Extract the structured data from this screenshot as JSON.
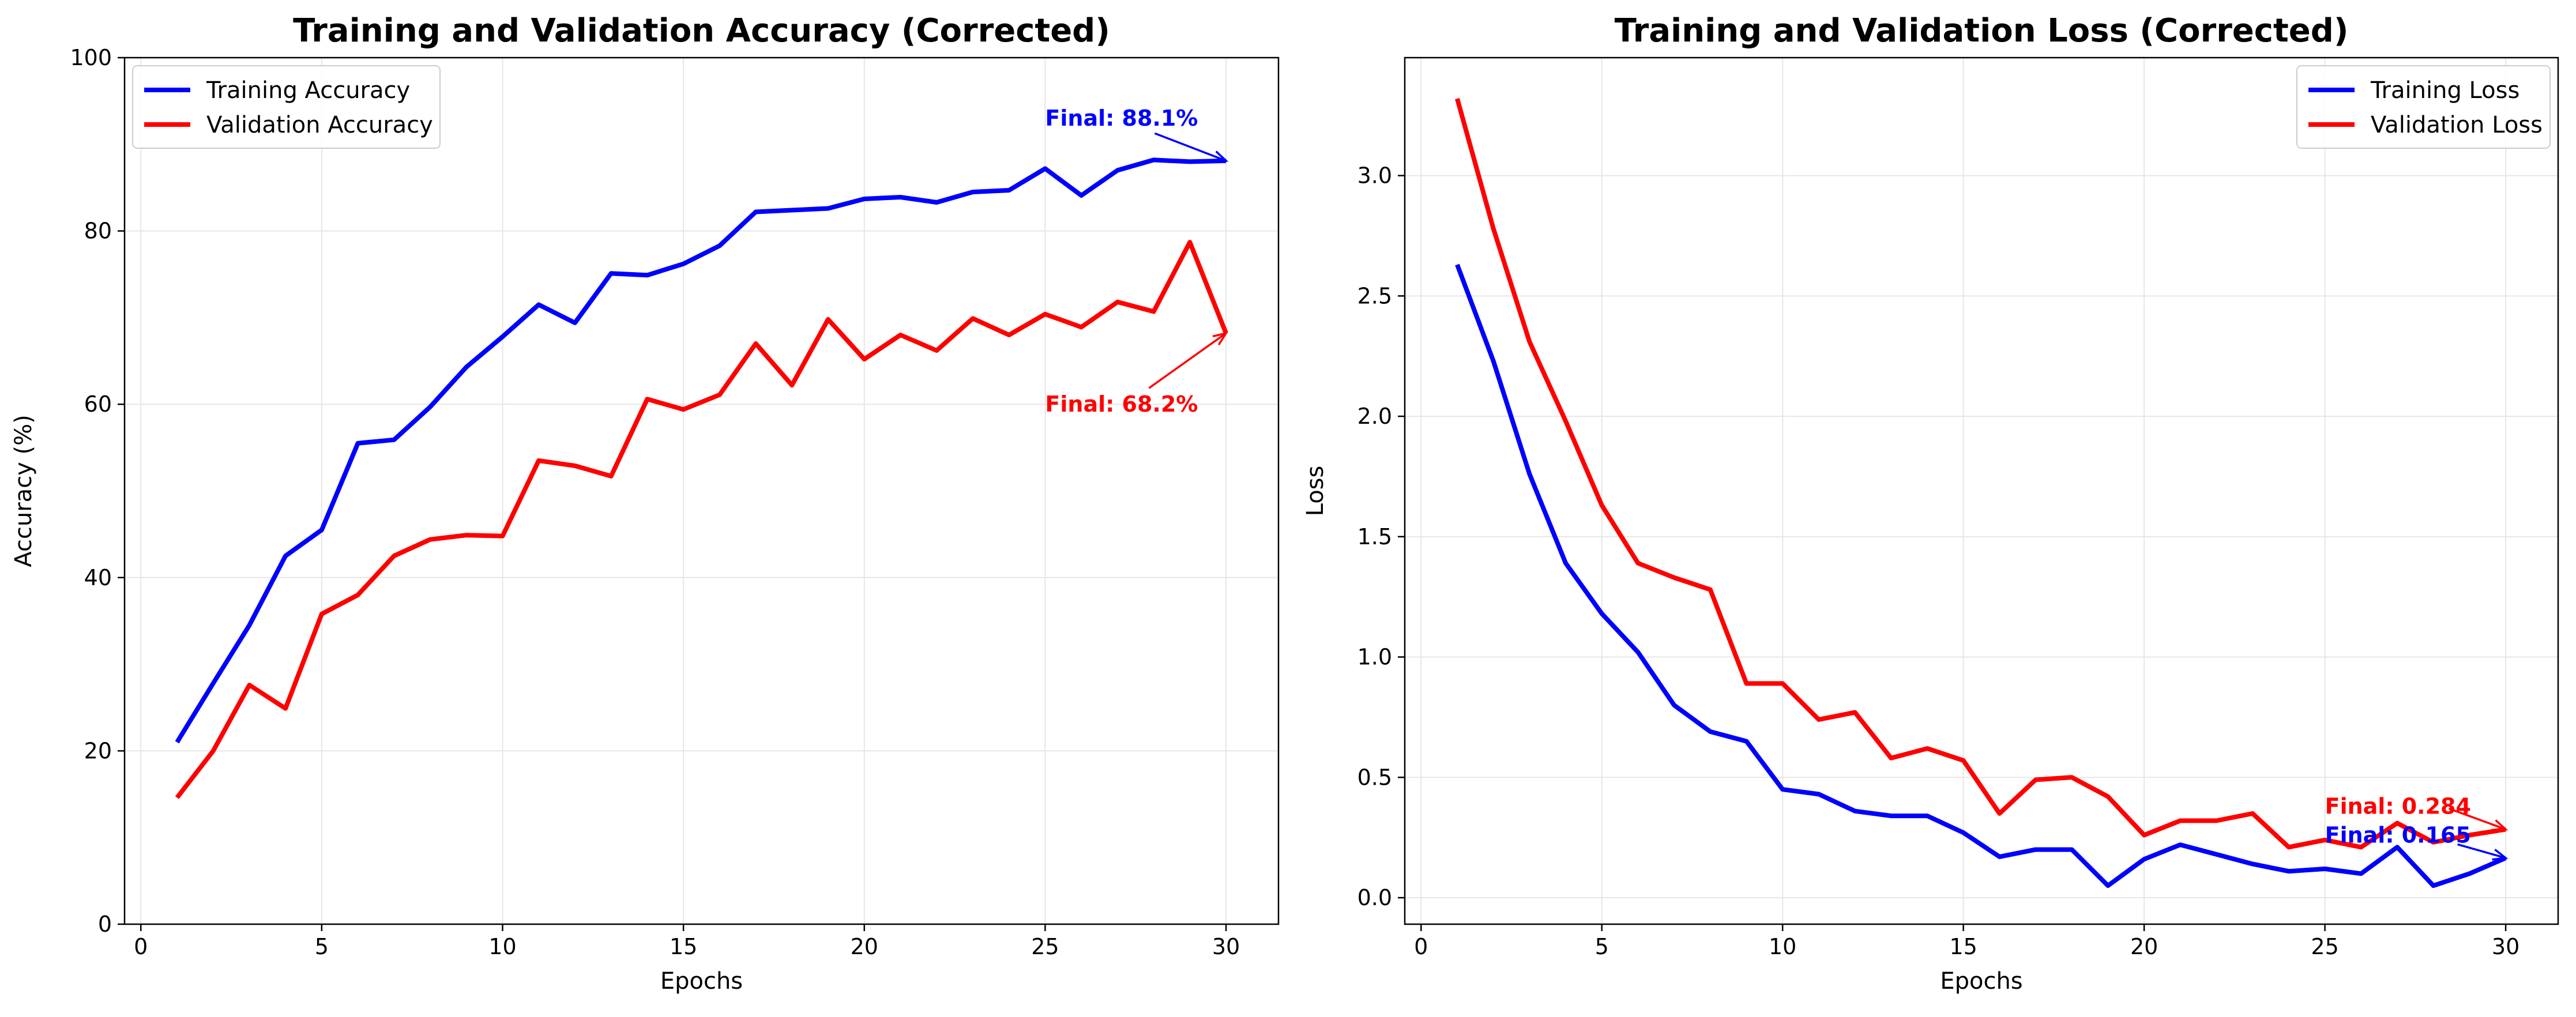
{
  "chart_data": [
    {
      "type": "line",
      "title": "Training and Validation Accuracy (Corrected)",
      "xlabel": "Epochs",
      "ylabel": "Accuracy (%)",
      "xlim": [
        -0.45,
        31.45
      ],
      "ylim": [
        0,
        100
      ],
      "xticks": [
        0,
        5,
        10,
        15,
        20,
        25,
        30
      ],
      "yticks": [
        0,
        20,
        40,
        60,
        80,
        100
      ],
      "xtick_labels": [
        "0",
        "5",
        "10",
        "15",
        "20",
        "25",
        "30"
      ],
      "ytick_labels": [
        "0",
        "20",
        "40",
        "60",
        "80",
        "100"
      ],
      "grid": true,
      "legend_position": "top-left",
      "x": [
        1,
        2,
        3,
        4,
        5,
        6,
        7,
        8,
        9,
        10,
        11,
        12,
        13,
        14,
        15,
        16,
        17,
        18,
        19,
        20,
        21,
        22,
        23,
        24,
        25,
        26,
        27,
        28,
        29,
        30
      ],
      "series": [
        {
          "name": "Training Accuracy",
          "color": "#0000ff",
          "values": [
            21.0,
            27.8,
            34.5,
            42.5,
            45.5,
            55.5,
            55.9,
            59.7,
            64.3,
            67.8,
            71.5,
            69.4,
            75.1,
            74.9,
            76.2,
            78.3,
            82.2,
            82.4,
            82.6,
            83.7,
            83.9,
            83.3,
            84.5,
            84.7,
            87.2,
            84.1,
            87.0,
            88.2,
            88.0,
            88.1
          ]
        },
        {
          "name": "Validation Accuracy",
          "color": "#ff0000",
          "values": [
            14.6,
            20.0,
            27.6,
            24.9,
            35.8,
            38.0,
            42.5,
            44.4,
            44.9,
            44.8,
            53.5,
            52.9,
            51.7,
            60.6,
            59.4,
            61.1,
            67.0,
            62.2,
            69.8,
            65.2,
            68.0,
            66.2,
            69.9,
            68.0,
            70.4,
            68.9,
            71.8,
            70.7,
            78.7,
            68.2
          ]
        }
      ],
      "annotations": [
        {
          "text": "Final: 88.1%",
          "color": "#0000ff",
          "point": [
            30,
            88.1
          ],
          "text_at": [
            25,
            93.0
          ]
        },
        {
          "text": "Final: 68.2%",
          "color": "#ff0000",
          "point": [
            30,
            68.2
          ],
          "text_at": [
            25,
            60.0
          ]
        }
      ]
    },
    {
      "type": "line",
      "title": "Training and Validation Loss (Corrected)",
      "xlabel": "Epochs",
      "ylabel": "Loss",
      "xlim": [
        -0.45,
        31.45
      ],
      "ylim": [
        -0.11,
        3.49
      ],
      "xticks": [
        0,
        5,
        10,
        15,
        20,
        25,
        30
      ],
      "yticks": [
        0.0,
        0.5,
        1.0,
        1.5,
        2.0,
        2.5,
        3.0
      ],
      "xtick_labels": [
        "0",
        "5",
        "10",
        "15",
        "20",
        "25",
        "30"
      ],
      "ytick_labels": [
        "0.0",
        "0.5",
        "1.0",
        "1.5",
        "2.0",
        "2.5",
        "3.0"
      ],
      "grid": true,
      "legend_position": "top-right",
      "x": [
        1,
        2,
        3,
        4,
        5,
        6,
        7,
        8,
        9,
        10,
        11,
        12,
        13,
        14,
        15,
        16,
        17,
        18,
        19,
        20,
        21,
        22,
        23,
        24,
        25,
        26,
        27,
        28,
        29,
        30
      ],
      "series": [
        {
          "name": "Training Loss",
          "color": "#0000ff",
          "values": [
            2.63,
            2.23,
            1.76,
            1.39,
            1.18,
            1.02,
            0.8,
            0.69,
            0.65,
            0.45,
            0.43,
            0.36,
            0.34,
            0.34,
            0.27,
            0.17,
            0.2,
            0.2,
            0.05,
            0.16,
            0.22,
            0.18,
            0.14,
            0.11,
            0.12,
            0.1,
            0.21,
            0.05,
            0.1,
            0.165
          ]
        },
        {
          "name": "Validation Loss",
          "color": "#ff0000",
          "values": [
            3.32,
            2.78,
            2.31,
            1.98,
            1.63,
            1.39,
            1.33,
            1.28,
            0.89,
            0.89,
            0.74,
            0.77,
            0.58,
            0.62,
            0.57,
            0.35,
            0.49,
            0.5,
            0.42,
            0.26,
            0.32,
            0.32,
            0.35,
            0.21,
            0.24,
            0.21,
            0.31,
            0.23,
            0.26,
            0.284
          ]
        }
      ],
      "annotations": [
        {
          "text": "Final: 0.284",
          "color": "#ff0000",
          "point": [
            30,
            0.284
          ],
          "text_at": [
            25,
            0.38
          ]
        },
        {
          "text": "Final: 0.165",
          "color": "#0000ff",
          "point": [
            30,
            0.165
          ],
          "text_at": [
            25,
            0.26
          ]
        }
      ]
    }
  ]
}
